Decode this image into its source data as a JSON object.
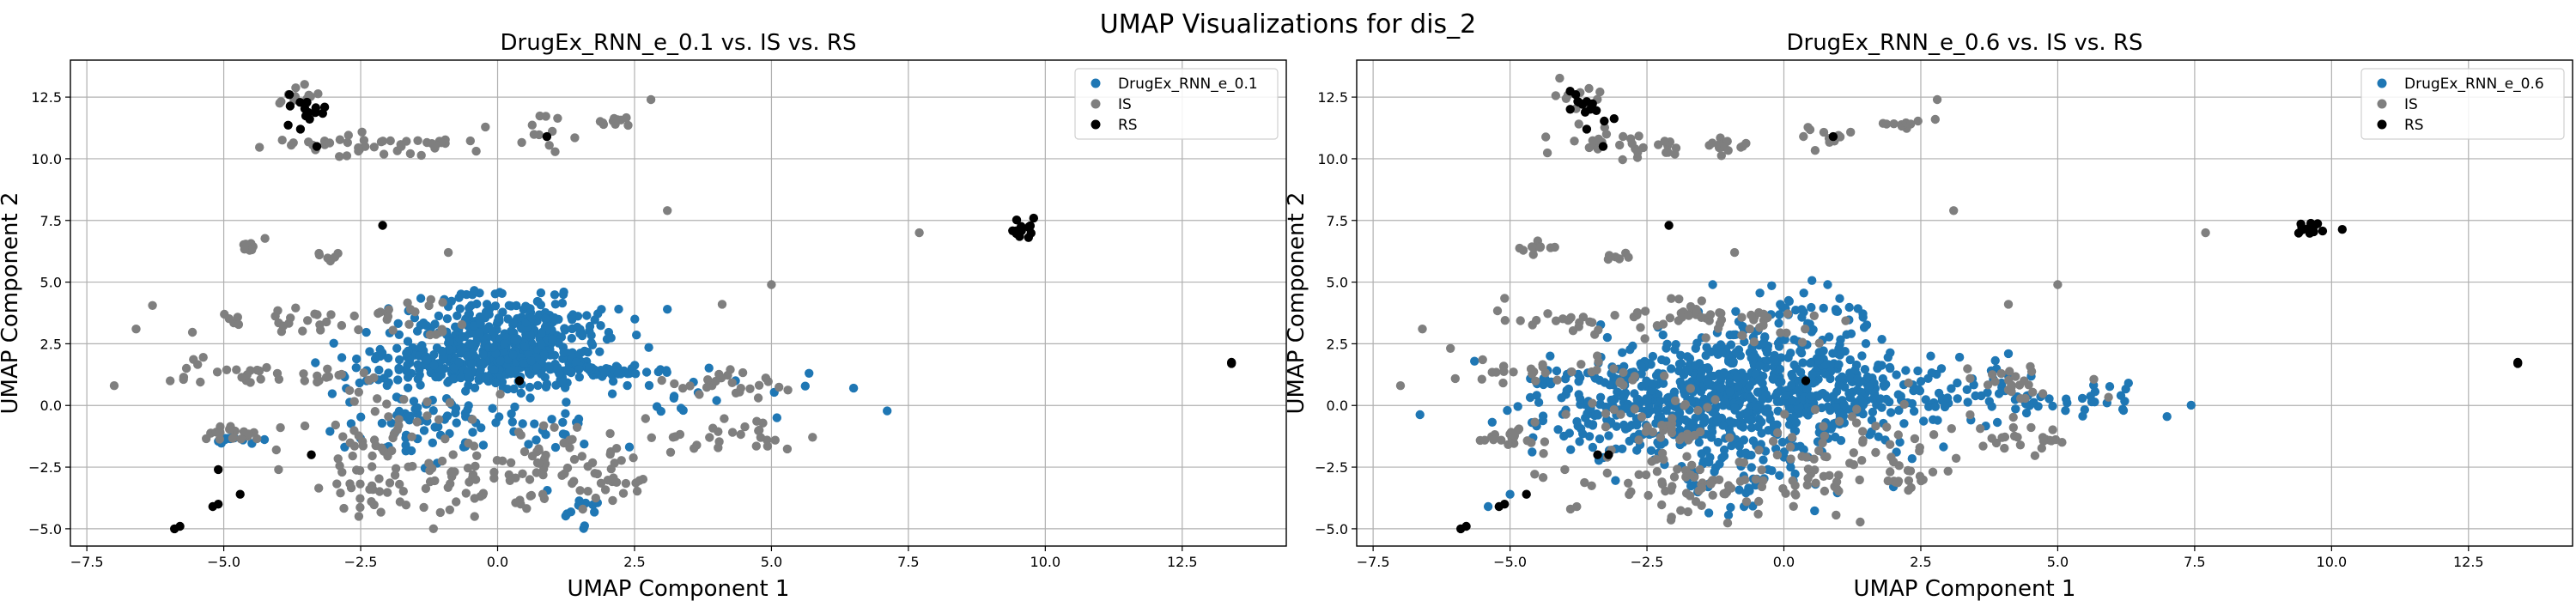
{
  "figure": {
    "title": "UMAP Visualizations for dis_2"
  },
  "colors": {
    "drug": "#1f77b4",
    "is": "#7f7f7f",
    "rs": "#000000",
    "grid": "#b0b0b0"
  },
  "chart_data": [
    {
      "type": "scatter",
      "title": "DrugEx_RNN_e_0.1 vs. IS vs. RS",
      "xlabel": "UMAP Component 1",
      "ylabel": "UMAP Component 2",
      "xlim": [
        -7.8,
        14.4
      ],
      "ylim": [
        -5.7,
        14.0
      ],
      "xticks": [
        -7.5,
        -5.0,
        -2.5,
        0.0,
        2.5,
        5.0,
        7.5,
        10.0,
        12.5
      ],
      "yticks": [
        -5.0,
        -2.5,
        0.0,
        2.5,
        5.0,
        7.5,
        10.0,
        12.5
      ],
      "grid": true,
      "legend_position": "top-right",
      "series": [
        {
          "name": "DrugEx_RNN_e_0.1",
          "color": "#1f77b4",
          "clusters": [
            {
              "cx": 0.2,
              "cy": 2.6,
              "sx": 0.9,
              "sy": 0.9,
              "n": 420
            },
            {
              "cx": -0.7,
              "cy": 1.6,
              "sx": 1.0,
              "sy": 0.4,
              "n": 140
            },
            {
              "cx": 1.8,
              "cy": 1.4,
              "sx": 0.5,
              "sy": 0.15,
              "n": 60
            },
            {
              "cx": -1.5,
              "cy": -0.5,
              "sx": 0.9,
              "sy": 1.0,
              "n": 70
            },
            {
              "cx": 0.5,
              "cy": -0.8,
              "sx": 1.2,
              "sy": 1.0,
              "n": 40
            },
            {
              "cx": -4.8,
              "cy": -1.4,
              "sx": 0.25,
              "sy": 0.1,
              "n": 12
            },
            {
              "cx": 1.5,
              "cy": -4.2,
              "sx": 0.2,
              "sy": 0.3,
              "n": 10
            },
            {
              "cx": 3.5,
              "cy": 0.5,
              "sx": 1.5,
              "sy": 0.8,
              "n": 20
            }
          ],
          "points": [
            [
              6.5,
              0.7
            ],
            [
              3.1,
              3.9
            ],
            [
              4.0,
              0.2
            ],
            [
              5.1,
              -0.5
            ]
          ]
        },
        {
          "name": "IS",
          "color": "#7f7f7f",
          "clusters": [
            {
              "cx": -3.7,
              "cy": 12.6,
              "sx": 0.3,
              "sy": 0.4,
              "n": 12
            },
            {
              "cx": -2.5,
              "cy": 10.6,
              "sx": 0.8,
              "sy": 0.25,
              "n": 35
            },
            {
              "cx": -1.0,
              "cy": 10.6,
              "sx": 0.3,
              "sy": 0.1,
              "n": 10
            },
            {
              "cx": 0.8,
              "cy": 10.9,
              "sx": 0.3,
              "sy": 0.5,
              "n": 12
            },
            {
              "cx": 2.1,
              "cy": 11.5,
              "sx": 0.2,
              "sy": 0.15,
              "n": 10
            },
            {
              "cx": -4.5,
              "cy": 6.5,
              "sx": 0.15,
              "sy": 0.2,
              "n": 10
            },
            {
              "cx": -3.0,
              "cy": 6.1,
              "sx": 0.15,
              "sy": 0.15,
              "n": 6
            },
            {
              "cx": -4.0,
              "cy": 3.5,
              "sx": 0.9,
              "sy": 0.3,
              "n": 25
            },
            {
              "cx": -1.6,
              "cy": 3.7,
              "sx": 0.6,
              "sy": 0.4,
              "n": 20
            },
            {
              "cx": -4.0,
              "cy": 1.3,
              "sx": 0.9,
              "sy": 0.2,
              "n": 25
            },
            {
              "cx": -5.0,
              "cy": -1.2,
              "sx": 0.3,
              "sy": 0.2,
              "n": 20
            },
            {
              "cx": -1.8,
              "cy": -3.2,
              "sx": 1.0,
              "sy": 0.7,
              "n": 70
            },
            {
              "cx": 0.8,
              "cy": -2.8,
              "sx": 0.6,
              "sy": 0.8,
              "n": 30
            },
            {
              "cx": 2.2,
              "cy": -2.8,
              "sx": 0.4,
              "sy": 0.5,
              "n": 20
            },
            {
              "cx": 4.3,
              "cy": -1.2,
              "sx": 0.6,
              "sy": 0.3,
              "n": 25
            },
            {
              "cx": 4.2,
              "cy": 0.9,
              "sx": 0.6,
              "sy": 0.3,
              "n": 25
            },
            {
              "cx": -2.3,
              "cy": -1.0,
              "sx": 0.8,
              "sy": 0.9,
              "n": 40
            },
            {
              "cx": 1.2,
              "cy": -1.5,
              "sx": 1.0,
              "sy": 0.8,
              "n": 30
            },
            {
              "cx": -5.5,
              "cy": 1.5,
              "sx": 0.3,
              "sy": 0.4,
              "n": 8
            }
          ],
          "points": [
            [
              -6.6,
              3.1
            ],
            [
              7.7,
              7.0
            ],
            [
              3.1,
              7.9
            ],
            [
              5.0,
              4.9
            ],
            [
              4.1,
              4.1
            ],
            [
              -0.9,
              6.2
            ],
            [
              2.8,
              12.4
            ],
            [
              -7.0,
              0.8
            ],
            [
              -4.0,
              -2.6
            ]
          ]
        },
        {
          "name": "RS",
          "color": "#000000",
          "clusters": [
            {
              "cx": -3.5,
              "cy": 12.0,
              "sx": 0.2,
              "sy": 0.3,
              "n": 12
            },
            {
              "cx": 9.6,
              "cy": 7.2,
              "sx": 0.15,
              "sy": 0.2,
              "n": 14
            }
          ],
          "points": [
            [
              -3.8,
              12.6
            ],
            [
              -3.6,
              11.2
            ],
            [
              -3.3,
              10.5
            ],
            [
              0.9,
              10.9
            ],
            [
              -2.1,
              7.3
            ],
            [
              -5.8,
              -4.9
            ],
            [
              -5.9,
              -5.0
            ],
            [
              -5.2,
              -4.1
            ],
            [
              -5.1,
              -4.0
            ],
            [
              -4.7,
              -3.6
            ],
            [
              -3.4,
              -2.0
            ],
            [
              -5.1,
              -2.6
            ],
            [
              13.4,
              1.7
            ],
            [
              13.4,
              1.75
            ],
            [
              0.4,
              1.0
            ]
          ]
        }
      ]
    },
    {
      "type": "scatter",
      "title": "DrugEx_RNN_e_0.6 vs. IS vs. RS",
      "xlabel": "UMAP Component 1",
      "ylabel": "UMAP Component 2",
      "xlim": [
        -7.8,
        14.4
      ],
      "ylim": [
        -5.7,
        14.0
      ],
      "xticks": [
        -7.5,
        -5.0,
        -2.5,
        0.0,
        2.5,
        5.0,
        7.5,
        10.0,
        12.5
      ],
      "yticks": [
        -5.0,
        -2.5,
        0.0,
        2.5,
        5.0,
        7.5,
        10.0,
        12.5
      ],
      "grid": true,
      "legend_position": "top-right",
      "series": [
        {
          "name": "DrugEx_RNN_e_0.6",
          "color": "#1f77b4",
          "clusters": [
            {
              "cx": -0.8,
              "cy": 0.3,
              "sx": 1.6,
              "sy": 1.1,
              "n": 650
            },
            {
              "cx": -0.2,
              "cy": 2.2,
              "sx": 1.0,
              "sy": 0.8,
              "n": 100
            },
            {
              "cx": 3.2,
              "cy": 0.3,
              "sx": 1.5,
              "sy": 0.6,
              "n": 80
            },
            {
              "cx": -3.0,
              "cy": -0.5,
              "sx": 0.9,
              "sy": 0.9,
              "n": 80
            },
            {
              "cx": -1.2,
              "cy": -2.5,
              "sx": 0.9,
              "sy": 0.8,
              "n": 60
            },
            {
              "cx": 5.2,
              "cy": 0.2,
              "sx": 0.6,
              "sy": 0.4,
              "n": 20
            },
            {
              "cx": 0.3,
              "cy": 4.0,
              "sx": 0.6,
              "sy": 0.5,
              "n": 25
            }
          ],
          "points": [
            [
              6.2,
              -0.2
            ],
            [
              -5.0,
              -3.6
            ],
            [
              -5.4,
              -4.1
            ],
            [
              0.8,
              4.9
            ],
            [
              -1.3,
              4.9
            ],
            [
              4.1,
              2.1
            ],
            [
              2.0,
              -3.3
            ]
          ]
        },
        {
          "name": "IS",
          "color": "#7f7f7f",
          "clusters": [
            {
              "cx": -3.7,
              "cy": 12.6,
              "sx": 0.3,
              "sy": 0.4,
              "n": 12
            },
            {
              "cx": -2.5,
              "cy": 10.6,
              "sx": 0.8,
              "sy": 0.25,
              "n": 35
            },
            {
              "cx": -1.0,
              "cy": 10.6,
              "sx": 0.3,
              "sy": 0.1,
              "n": 10
            },
            {
              "cx": 0.8,
              "cy": 10.9,
              "sx": 0.3,
              "sy": 0.5,
              "n": 12
            },
            {
              "cx": 2.1,
              "cy": 11.5,
              "sx": 0.2,
              "sy": 0.15,
              "n": 10
            },
            {
              "cx": -4.5,
              "cy": 6.5,
              "sx": 0.15,
              "sy": 0.2,
              "n": 10
            },
            {
              "cx": -3.0,
              "cy": 6.1,
              "sx": 0.15,
              "sy": 0.15,
              "n": 6
            },
            {
              "cx": -4.0,
              "cy": 3.5,
              "sx": 0.9,
              "sy": 0.3,
              "n": 25
            },
            {
              "cx": -1.6,
              "cy": 3.7,
              "sx": 0.6,
              "sy": 0.4,
              "n": 20
            },
            {
              "cx": -4.0,
              "cy": 1.3,
              "sx": 0.9,
              "sy": 0.2,
              "n": 25
            },
            {
              "cx": -5.0,
              "cy": -1.2,
              "sx": 0.3,
              "sy": 0.2,
              "n": 20
            },
            {
              "cx": -1.8,
              "cy": -3.2,
              "sx": 1.0,
              "sy": 0.7,
              "n": 70
            },
            {
              "cx": 0.8,
              "cy": -2.8,
              "sx": 0.6,
              "sy": 0.8,
              "n": 30
            },
            {
              "cx": 2.2,
              "cy": -2.8,
              "sx": 0.4,
              "sy": 0.5,
              "n": 20
            },
            {
              "cx": 4.3,
              "cy": -1.2,
              "sx": 0.6,
              "sy": 0.3,
              "n": 25
            },
            {
              "cx": 4.2,
              "cy": 0.9,
              "sx": 0.6,
              "sy": 0.3,
              "n": 25
            },
            {
              "cx": -2.3,
              "cy": -1.0,
              "sx": 0.8,
              "sy": 0.9,
              "n": 40
            },
            {
              "cx": 1.2,
              "cy": -1.5,
              "sx": 1.0,
              "sy": 0.8,
              "n": 30
            },
            {
              "cx": -0.8,
              "cy": 3.2,
              "sx": 0.8,
              "sy": 0.5,
              "n": 30
            },
            {
              "cx": -5.5,
              "cy": 1.5,
              "sx": 0.3,
              "sy": 0.4,
              "n": 8
            }
          ],
          "points": [
            [
              -6.6,
              3.1
            ],
            [
              7.7,
              7.0
            ],
            [
              3.1,
              7.9
            ],
            [
              5.0,
              4.9
            ],
            [
              4.1,
              4.1
            ],
            [
              -0.9,
              6.2
            ],
            [
              2.8,
              12.4
            ],
            [
              -7.0,
              0.8
            ],
            [
              -4.0,
              -2.6
            ]
          ]
        },
        {
          "name": "RS",
          "color": "#000000",
          "clusters": [
            {
              "cx": -3.5,
              "cy": 12.0,
              "sx": 0.2,
              "sy": 0.3,
              "n": 12
            },
            {
              "cx": 9.6,
              "cy": 7.2,
              "sx": 0.15,
              "sy": 0.2,
              "n": 14
            }
          ],
          "points": [
            [
              -3.8,
              12.6
            ],
            [
              -3.6,
              11.2
            ],
            [
              -3.3,
              10.5
            ],
            [
              0.9,
              10.9
            ],
            [
              -2.1,
              7.3
            ],
            [
              -5.8,
              -4.9
            ],
            [
              -5.9,
              -5.0
            ],
            [
              -5.2,
              -4.1
            ],
            [
              -5.1,
              -4.0
            ],
            [
              -4.7,
              -3.6
            ],
            [
              -3.4,
              -2.0
            ],
            [
              -3.2,
              -2.0
            ],
            [
              13.4,
              1.7
            ],
            [
              13.4,
              1.75
            ],
            [
              0.4,
              1.0
            ]
          ]
        }
      ]
    }
  ]
}
